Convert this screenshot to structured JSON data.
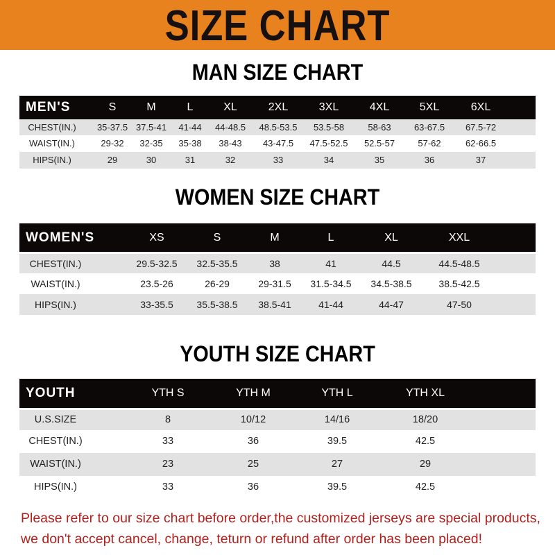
{
  "banner_title": "SIZE CHART",
  "colors": {
    "banner": "#e8821e",
    "header_row": "#0c0808",
    "stripe": "#e2e2e2",
    "footer_text": "#b1201d"
  },
  "tables": [
    {
      "title": "MAN SIZE CHART",
      "header": [
        "MEN'S",
        "S",
        "M",
        "L",
        "XL",
        "2XL",
        "3XL",
        "4XL",
        "5XL",
        "6XL"
      ],
      "rows": [
        [
          "CHEST(IN.)",
          "35-37.5",
          "37.5-41",
          "41-44",
          "44-48.5",
          "48.5-53.5",
          "53.5-58",
          "58-63",
          "63-67.5",
          "67.5-72"
        ],
        [
          "WAIST(IN.)",
          "29-32",
          "32-35",
          "35-38",
          "38-43",
          "43-47.5",
          "47.5-52.5",
          "52.5-57",
          "57-62",
          "62-66.5"
        ],
        [
          "HIPS(IN.)",
          "29",
          "30",
          "31",
          "32",
          "33",
          "34",
          "35",
          "36",
          "37"
        ]
      ]
    },
    {
      "title": "WOMEN SIZE CHART",
      "header": [
        "WOMEN'S",
        "XS",
        "S",
        "M",
        "L",
        "XL",
        "XXL"
      ],
      "rows": [
        [
          "CHEST(IN.)",
          "29.5-32.5",
          "32.5-35.5",
          "38",
          "41",
          "44.5",
          "44.5-48.5"
        ],
        [
          "WAIST(IN.)",
          "23.5-26",
          "26-29",
          "29-31.5",
          "31.5-34.5",
          "34.5-38.5",
          "38.5-42.5"
        ],
        [
          "HIPS(IN.)",
          "33-35.5",
          "35.5-38.5",
          "38.5-41",
          "41-44",
          "44-47",
          "47-50"
        ]
      ]
    },
    {
      "title": "YOUTH SIZE CHART",
      "header": [
        "YOUTH",
        "YTH S",
        "YTH M",
        "YTH L",
        "YTH XL"
      ],
      "rows": [
        [
          "U.S.SIZE",
          "8",
          "10/12",
          "14/16",
          "18/20"
        ],
        [
          "CHEST(IN.)",
          "33",
          "36",
          "39.5",
          "42.5"
        ],
        [
          "WAIST(IN.)",
          "23",
          "25",
          "27",
          "29"
        ],
        [
          "HIPS(IN.)",
          "33",
          "36",
          "39.5",
          "42.5"
        ]
      ]
    }
  ],
  "footer": {
    "line1": "Please refer to our size chart before order,the customized jerseys are special products,",
    "line2": "we don't accept cancel, change, teturn or refund after order has been placed!"
  }
}
